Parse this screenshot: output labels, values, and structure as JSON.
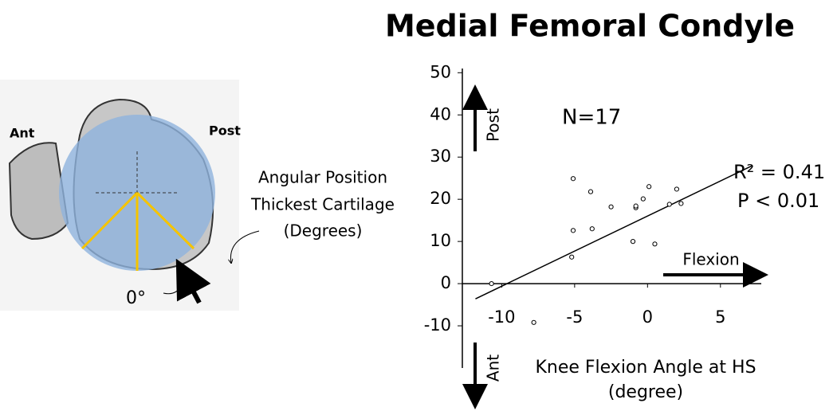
{
  "illustration": {
    "ant": "Ant",
    "post": "Post",
    "label_lines": [
      "Angular Position",
      "Thickest Cartilage",
      "(Degrees)"
    ],
    "zero": "0°"
  },
  "chart_data": {
    "type": "scatter",
    "title": "Medial Femoral Condyle",
    "xlabel": [
      "Knee Flexion Angle at HS",
      "(degree)"
    ],
    "x": [
      -10.7,
      -7.8,
      -5.1,
      -5.1,
      -5.2,
      -3.9,
      -3.8,
      -2.5,
      -1.0,
      -0.8,
      -0.8,
      -0.3,
      0.1,
      0.5,
      1.5,
      2.0,
      2.3
    ],
    "y": [
      0,
      -9.2,
      24.9,
      12.6,
      6.3,
      21.8,
      13,
      18.2,
      10,
      18,
      18.4,
      20.1,
      23,
      9.4,
      18.8,
      22.4,
      19
    ],
    "fit": {
      "x": [
        -11.8,
        7.2
      ],
      "y": [
        -3.6,
        28
      ]
    },
    "xlim": [
      -12.7,
      7.8
    ],
    "ylim": [
      -20,
      51
    ],
    "xticks": [
      -10,
      -5,
      0,
      5
    ],
    "yticks": [
      -10,
      0,
      10,
      20,
      30,
      40,
      50
    ],
    "annotations": {
      "n": "N=17",
      "r2": "R² = 0.41",
      "p": "P < 0.01",
      "post": "Post",
      "ant": "Ant",
      "flexion": "Flexion"
    },
    "color": "#000"
  }
}
